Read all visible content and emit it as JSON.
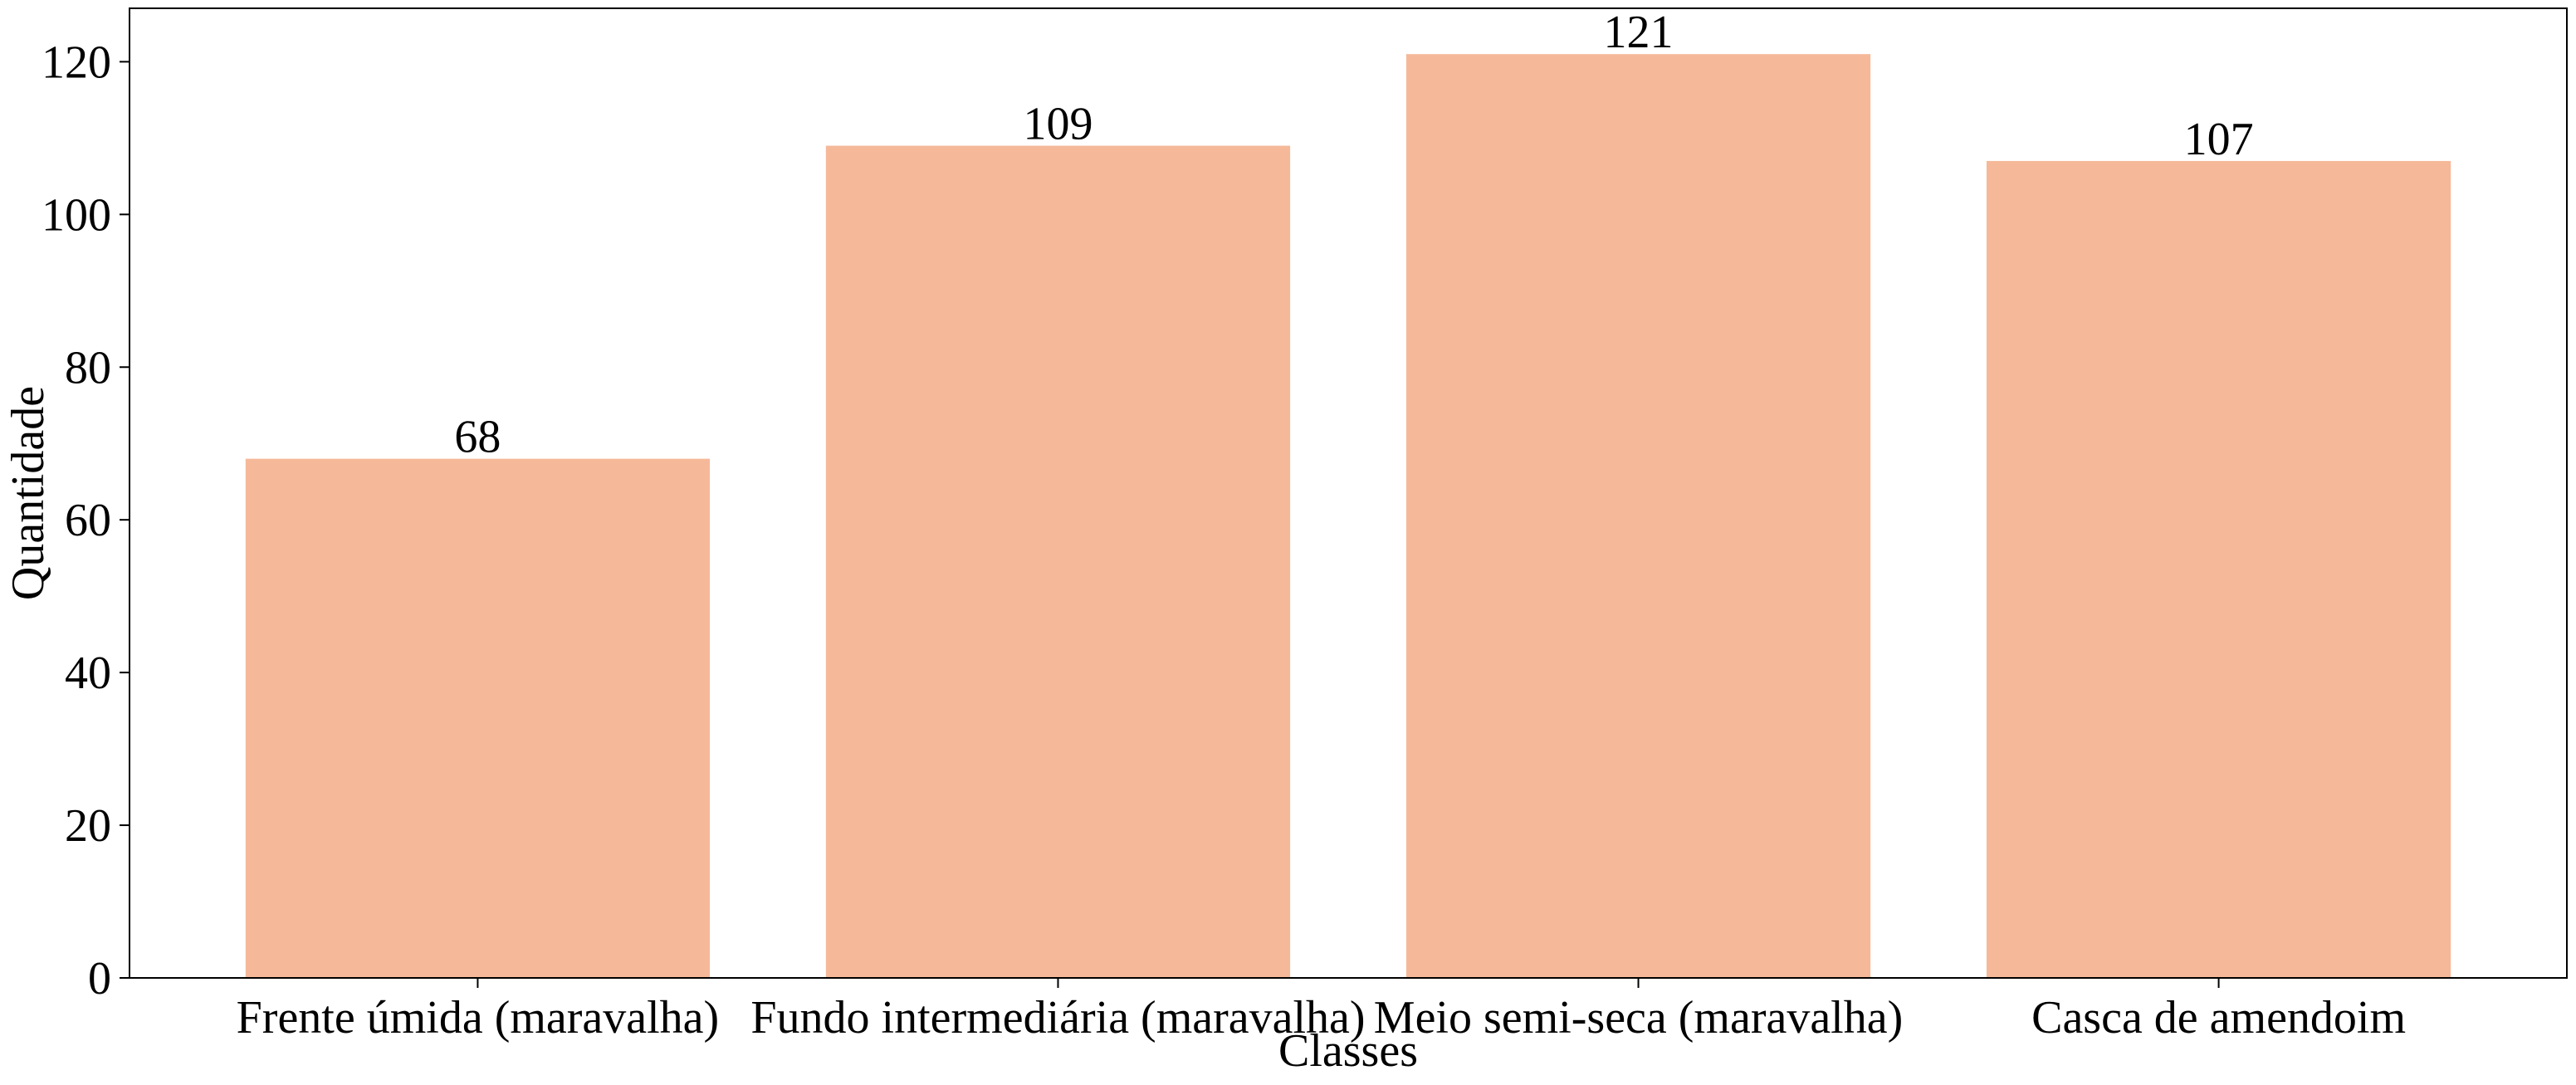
{
  "chart_data": {
    "type": "bar",
    "title": "",
    "xlabel": "Classes",
    "ylabel": "Quantidade",
    "categories": [
      "Frente úmida (maravalha)",
      "Fundo intermediária (maravalha)",
      "Meio semi-seca (maravalha)",
      "Casca de amendoim"
    ],
    "values": [
      68,
      109,
      121,
      107
    ],
    "data_labels": [
      "68",
      "109",
      "121",
      "107"
    ],
    "ylim": [
      0,
      127
    ],
    "yticks": [
      0,
      20,
      40,
      60,
      80,
      100,
      120
    ],
    "ytick_labels": [
      "0",
      "20",
      "40",
      "60",
      "80",
      "100",
      "120"
    ],
    "grid": false,
    "legend": "none",
    "bar_color": "#f5b999"
  }
}
